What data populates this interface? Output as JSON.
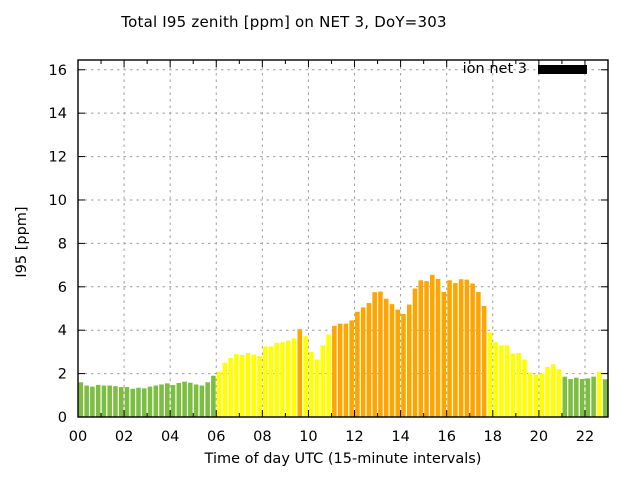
{
  "chart_data": {
    "type": "bar",
    "title": "Total I95 zenith [ppm] on NET 3, DoY=303",
    "xlabel": "Time of day UTC (15-minute intervals)",
    "ylabel": "I95 [ppm]",
    "legend": [
      {
        "label": "ion net 3",
        "swatch_color": "#000000"
      }
    ],
    "legend_position": "top-right-inside",
    "grid": true,
    "grid_color": "#9e9e9e",
    "interval_minutes": 15,
    "x_axis": {
      "range_hours": [
        0,
        23
      ],
      "tick_labels": [
        "00",
        "02",
        "04",
        "06",
        "08",
        "10",
        "12",
        "14",
        "16",
        "18",
        "20",
        "22"
      ]
    },
    "y_axis": {
      "range": [
        0,
        16
      ],
      "ticks": [
        0,
        2,
        4,
        6,
        8,
        10,
        12,
        14,
        16
      ]
    },
    "colors": {
      "green": "#7CBE42",
      "yellow": "#FFFF00",
      "orange": "#FFA500"
    },
    "bars": [
      {
        "t": "00:00",
        "v": 1.6,
        "c": "green"
      },
      {
        "t": "00:15",
        "v": 1.45,
        "c": "green"
      },
      {
        "t": "00:30",
        "v": 1.4,
        "c": "green"
      },
      {
        "t": "00:45",
        "v": 1.48,
        "c": "green"
      },
      {
        "t": "01:00",
        "v": 1.45,
        "c": "green"
      },
      {
        "t": "01:15",
        "v": 1.45,
        "c": "green"
      },
      {
        "t": "01:30",
        "v": 1.42,
        "c": "green"
      },
      {
        "t": "01:45",
        "v": 1.38,
        "c": "green"
      },
      {
        "t": "02:00",
        "v": 1.38,
        "c": "green"
      },
      {
        "t": "02:15",
        "v": 1.3,
        "c": "green"
      },
      {
        "t": "02:30",
        "v": 1.35,
        "c": "green"
      },
      {
        "t": "02:45",
        "v": 1.32,
        "c": "green"
      },
      {
        "t": "03:00",
        "v": 1.4,
        "c": "green"
      },
      {
        "t": "03:15",
        "v": 1.45,
        "c": "green"
      },
      {
        "t": "03:30",
        "v": 1.5,
        "c": "green"
      },
      {
        "t": "03:45",
        "v": 1.55,
        "c": "green"
      },
      {
        "t": "04:00",
        "v": 1.47,
        "c": "green"
      },
      {
        "t": "04:15",
        "v": 1.57,
        "c": "green"
      },
      {
        "t": "04:30",
        "v": 1.63,
        "c": "green"
      },
      {
        "t": "04:45",
        "v": 1.58,
        "c": "green"
      },
      {
        "t": "05:00",
        "v": 1.5,
        "c": "green"
      },
      {
        "t": "05:15",
        "v": 1.45,
        "c": "green"
      },
      {
        "t": "05:30",
        "v": 1.6,
        "c": "green"
      },
      {
        "t": "05:45",
        "v": 1.9,
        "c": "green"
      },
      {
        "t": "06:00",
        "v": 2.1,
        "c": "yellow"
      },
      {
        "t": "06:15",
        "v": 2.5,
        "c": "yellow"
      },
      {
        "t": "06:30",
        "v": 2.72,
        "c": "yellow"
      },
      {
        "t": "06:45",
        "v": 2.9,
        "c": "yellow"
      },
      {
        "t": "07:00",
        "v": 2.86,
        "c": "yellow"
      },
      {
        "t": "07:15",
        "v": 2.95,
        "c": "yellow"
      },
      {
        "t": "07:30",
        "v": 2.88,
        "c": "yellow"
      },
      {
        "t": "07:45",
        "v": 2.8,
        "c": "yellow"
      },
      {
        "t": "08:00",
        "v": 3.25,
        "c": "yellow"
      },
      {
        "t": "08:15",
        "v": 3.25,
        "c": "yellow"
      },
      {
        "t": "08:30",
        "v": 3.42,
        "c": "yellow"
      },
      {
        "t": "08:45",
        "v": 3.45,
        "c": "yellow"
      },
      {
        "t": "09:00",
        "v": 3.52,
        "c": "yellow"
      },
      {
        "t": "09:15",
        "v": 3.62,
        "c": "yellow"
      },
      {
        "t": "09:30",
        "v": 4.05,
        "c": "orange"
      },
      {
        "t": "09:45",
        "v": 3.72,
        "c": "yellow"
      },
      {
        "t": "10:00",
        "v": 3.0,
        "c": "yellow"
      },
      {
        "t": "10:15",
        "v": 2.65,
        "c": "yellow"
      },
      {
        "t": "10:30",
        "v": 3.3,
        "c": "yellow"
      },
      {
        "t": "10:45",
        "v": 3.8,
        "c": "yellow"
      },
      {
        "t": "11:00",
        "v": 4.2,
        "c": "orange"
      },
      {
        "t": "11:15",
        "v": 4.3,
        "c": "orange"
      },
      {
        "t": "11:30",
        "v": 4.3,
        "c": "orange"
      },
      {
        "t": "11:45",
        "v": 4.45,
        "c": "orange"
      },
      {
        "t": "12:00",
        "v": 4.85,
        "c": "orange"
      },
      {
        "t": "12:15",
        "v": 5.05,
        "c": "orange"
      },
      {
        "t": "12:30",
        "v": 5.25,
        "c": "orange"
      },
      {
        "t": "12:45",
        "v": 5.75,
        "c": "orange"
      },
      {
        "t": "13:00",
        "v": 5.78,
        "c": "orange"
      },
      {
        "t": "13:15",
        "v": 5.45,
        "c": "orange"
      },
      {
        "t": "13:30",
        "v": 5.2,
        "c": "orange"
      },
      {
        "t": "13:45",
        "v": 4.95,
        "c": "orange"
      },
      {
        "t": "14:00",
        "v": 4.75,
        "c": "orange"
      },
      {
        "t": "14:15",
        "v": 5.18,
        "c": "orange"
      },
      {
        "t": "14:30",
        "v": 5.92,
        "c": "orange"
      },
      {
        "t": "14:45",
        "v": 6.3,
        "c": "orange"
      },
      {
        "t": "15:00",
        "v": 6.26,
        "c": "orange"
      },
      {
        "t": "15:15",
        "v": 6.55,
        "c": "orange"
      },
      {
        "t": "15:30",
        "v": 6.36,
        "c": "orange"
      },
      {
        "t": "15:45",
        "v": 5.76,
        "c": "orange"
      },
      {
        "t": "16:00",
        "v": 6.3,
        "c": "orange"
      },
      {
        "t": "16:15",
        "v": 6.17,
        "c": "orange"
      },
      {
        "t": "16:30",
        "v": 6.35,
        "c": "orange"
      },
      {
        "t": "16:45",
        "v": 6.33,
        "c": "orange"
      },
      {
        "t": "17:00",
        "v": 6.15,
        "c": "orange"
      },
      {
        "t": "17:15",
        "v": 5.76,
        "c": "orange"
      },
      {
        "t": "17:30",
        "v": 5.12,
        "c": "orange"
      },
      {
        "t": "17:45",
        "v": 3.9,
        "c": "yellow"
      },
      {
        "t": "18:00",
        "v": 3.45,
        "c": "yellow"
      },
      {
        "t": "18:15",
        "v": 3.3,
        "c": "yellow"
      },
      {
        "t": "18:30",
        "v": 3.3,
        "c": "yellow"
      },
      {
        "t": "18:45",
        "v": 2.93,
        "c": "yellow"
      },
      {
        "t": "19:00",
        "v": 2.95,
        "c": "yellow"
      },
      {
        "t": "19:15",
        "v": 2.65,
        "c": "yellow"
      },
      {
        "t": "19:30",
        "v": 2.05,
        "c": "yellow"
      },
      {
        "t": "19:45",
        "v": 1.95,
        "c": "yellow"
      },
      {
        "t": "20:00",
        "v": 2.0,
        "c": "yellow"
      },
      {
        "t": "20:15",
        "v": 2.3,
        "c": "yellow"
      },
      {
        "t": "20:30",
        "v": 2.43,
        "c": "yellow"
      },
      {
        "t": "20:45",
        "v": 2.2,
        "c": "yellow"
      },
      {
        "t": "21:00",
        "v": 1.86,
        "c": "green"
      },
      {
        "t": "21:15",
        "v": 1.75,
        "c": "green"
      },
      {
        "t": "21:30",
        "v": 1.81,
        "c": "green"
      },
      {
        "t": "21:45",
        "v": 1.75,
        "c": "green"
      },
      {
        "t": "22:00",
        "v": 1.78,
        "c": "green"
      },
      {
        "t": "22:15",
        "v": 1.86,
        "c": "green"
      },
      {
        "t": "22:30",
        "v": 2.09,
        "c": "yellow"
      },
      {
        "t": "22:45",
        "v": 1.74,
        "c": "green"
      }
    ]
  }
}
